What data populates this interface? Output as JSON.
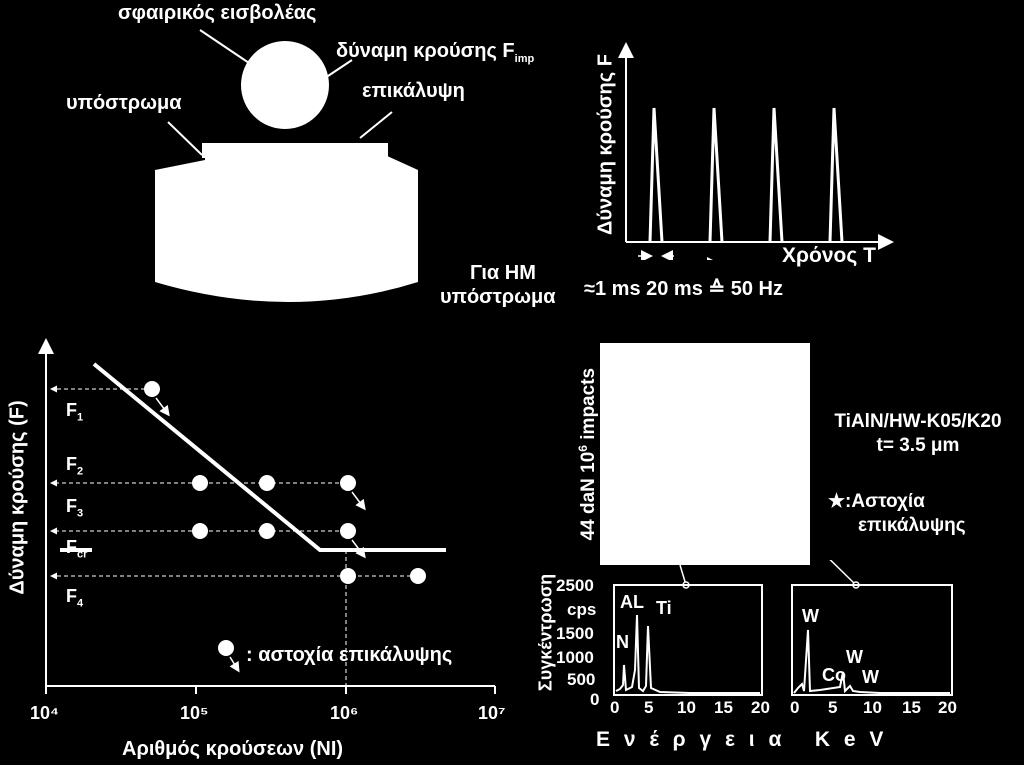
{
  "top_left": {
    "indenter_label": "σφαιρικός εισβολέας",
    "force_label": "δύναμη κρούσης  F",
    "force_sub": "imp",
    "substrate_label": "υπόστρωμα",
    "coating_label": "επικάλυψη"
  },
  "top_right": {
    "y_axis_label": "Δύναμη κρούσης F",
    "x_axis_label": "Χρόνος T",
    "note_line1": "Για HM",
    "note_line2": "υπόστρωμα",
    "timing": "≈1 ms  20 ms ≙ 50 Hz"
  },
  "bottom_left": {
    "y_axis_label": "Δύναμη κρούσης (F)",
    "x_axis_label": "Αριθμός κρούσεων (NI)",
    "x_ticks": [
      "10⁴",
      "10⁵",
      "10⁶",
      "10⁷"
    ],
    "force_levels": [
      {
        "label": "F",
        "sub": "1"
      },
      {
        "label": "F",
        "sub": "2"
      },
      {
        "label": "F",
        "sub": "3"
      },
      {
        "label": "F",
        "sub": "cr"
      },
      {
        "label": "F",
        "sub": "4"
      }
    ],
    "legend_text": ": αστοχία επικάλυψης"
  },
  "bottom_right": {
    "impacts_label": "44 daN 10",
    "impacts_sup": "6",
    "impacts_suffix": " impacts",
    "specimen_line1": "TiAlN/HW-K05/K20",
    "specimen_line2": "t= 3.5 μm",
    "failure_line1": ":Αστοχία",
    "failure_line2": "επικάλυψης",
    "spectrum_y_label": "Συγκέντρωση",
    "spectrum_y_unit": "cps",
    "spectrum_y_ticks": [
      "2500",
      "1500",
      "1000",
      "500",
      "0"
    ],
    "spectrum_x_ticks": [
      "0",
      "5",
      "10",
      "15",
      "20"
    ],
    "spectrum_x_label": "Ε ν έ ρ γ ε ι α   K e V",
    "left_peaks": [
      "AL",
      "Ti",
      "N"
    ],
    "right_peaks": [
      "W",
      "W",
      "Co",
      "W"
    ]
  },
  "colors": {
    "background": "#000000",
    "foreground": "#ffffff"
  }
}
